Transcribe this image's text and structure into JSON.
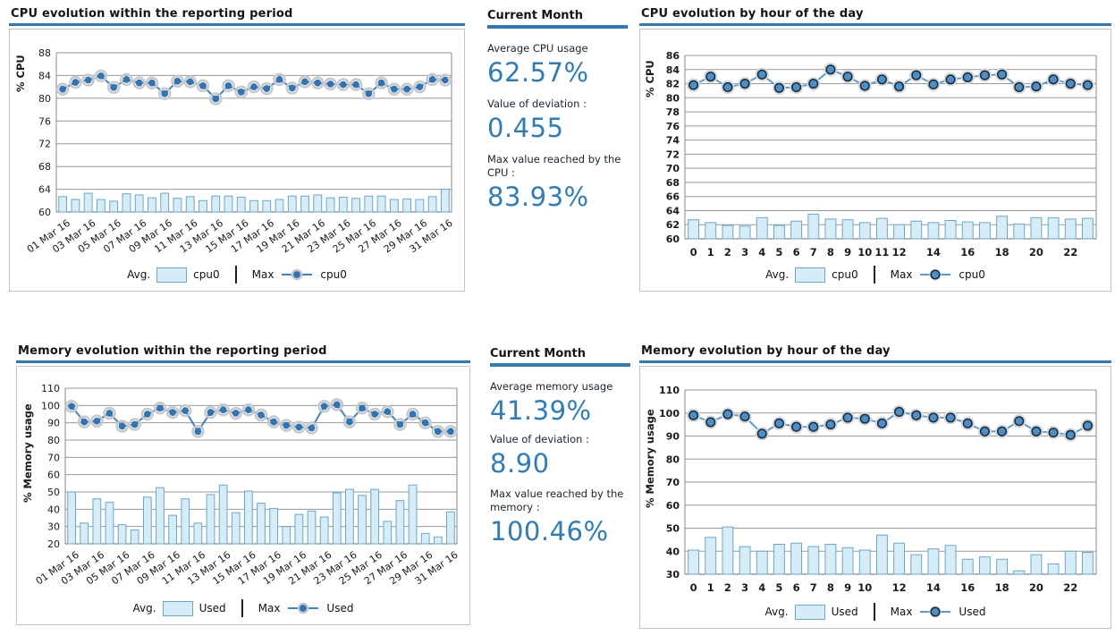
{
  "colors": {
    "accent": "#3079b8",
    "stat_value_blue": "#2e7cba",
    "bar_fill": "#d6ecf7",
    "bar_border": "#68a8cb",
    "line_left": "#3d82c4",
    "line_right": "#5b9bd5",
    "marker_fill_left": "#2e75b6",
    "marker_fill_right": "#4a8fc7"
  },
  "stats_cpu": {
    "heading": "Current Month",
    "items": [
      {
        "label": "Average CPU usage",
        "value": "62.57%"
      },
      {
        "label": "Value of deviation :",
        "value": "0.455"
      },
      {
        "label": "Max value reached by the CPU :",
        "value": "83.93%"
      }
    ]
  },
  "stats_memory": {
    "heading": "Current Month",
    "items": [
      {
        "label": "Average memory usage",
        "value": "41.39%"
      },
      {
        "label": "Value of deviation :",
        "value": "8.90"
      },
      {
        "label": "Max value reached by the memory :",
        "value": "100.46%"
      }
    ]
  },
  "chart_data": [
    {
      "id": "cpu-period",
      "type": "bar+line",
      "title": "CPU evolution within the reporting period",
      "ylabel": "% CPU",
      "ylim": [
        60,
        88
      ],
      "ytick_step": 4,
      "grid": true,
      "legend_position": "bottom",
      "categories": [
        "01 Mar 16",
        "02 Mar 16",
        "03 Mar 16",
        "04 Mar 16",
        "05 Mar 16",
        "06 Mar 16",
        "07 Mar 16",
        "08 Mar 16",
        "09 Mar 16",
        "10 Mar 16",
        "11 Mar 16",
        "12 Mar 16",
        "13 Mar 16",
        "14 Mar 16",
        "15 Mar 16",
        "16 Mar 16",
        "17 Mar 16",
        "18 Mar 16",
        "19 Mar 16",
        "20 Mar 16",
        "21 Mar 16",
        "22 Mar 16",
        "23 Mar 16",
        "24 Mar 16",
        "25 Mar 16",
        "26 Mar 16",
        "27 Mar 16",
        "28 Mar 16",
        "29 Mar 16",
        "30 Mar 16",
        "31 Mar 16"
      ],
      "xtick_indices": [
        0,
        2,
        4,
        6,
        8,
        10,
        12,
        14,
        16,
        18,
        20,
        22,
        24,
        26,
        28,
        30
      ],
      "series": [
        {
          "name": "cpu0",
          "stat": "Avg.",
          "type": "bar",
          "values": [
            62.7,
            62.2,
            63.3,
            62.2,
            61.9,
            63.2,
            63.0,
            62.5,
            63.3,
            62.4,
            62.7,
            62.0,
            62.8,
            62.8,
            62.6,
            62.0,
            62.0,
            62.2,
            62.8,
            62.8,
            63.0,
            62.5,
            62.6,
            62.4,
            62.8,
            62.8,
            62.2,
            62.3,
            62.2,
            62.7,
            64.0
          ]
        },
        {
          "name": "cpu0",
          "stat": "Max",
          "type": "line",
          "values": [
            81.6,
            82.8,
            83.2,
            83.93,
            81.9,
            83.3,
            82.7,
            82.7,
            80.8,
            83.0,
            82.9,
            82.2,
            79.9,
            82.2,
            81.1,
            82.0,
            81.7,
            83.3,
            81.8,
            82.9,
            82.7,
            82.5,
            82.4,
            82.4,
            80.8,
            82.7,
            81.6,
            81.6,
            82.0,
            83.3,
            83.2
          ]
        }
      ],
      "legend": {
        "avg_label": "Avg.",
        "avg_series": "cpu0",
        "max_label": "Max",
        "max_series": "cpu0"
      }
    },
    {
      "id": "cpu-hour",
      "type": "bar+line",
      "title": "CPU evolution by hour of the day",
      "ylabel": "% CPU",
      "ylim": [
        60,
        86
      ],
      "ytick_step": 2,
      "grid": true,
      "legend_position": "bottom",
      "categories": [
        "0",
        "1",
        "2",
        "3",
        "4",
        "5",
        "6",
        "7",
        "8",
        "9",
        "10",
        "11",
        "12",
        "13",
        "14",
        "15",
        "16",
        "17",
        "18",
        "19",
        "20",
        "21",
        "22",
        "23"
      ],
      "xtick_indices": [
        0,
        1,
        2,
        3,
        4,
        5,
        6,
        7,
        8,
        9,
        10,
        11,
        12,
        14,
        16,
        18,
        20,
        22
      ],
      "series": [
        {
          "name": "cpu0",
          "stat": "Avg.",
          "type": "bar",
          "values": [
            62.7,
            62.3,
            61.9,
            61.8,
            63.0,
            61.9,
            62.5,
            63.5,
            62.8,
            62.7,
            62.3,
            62.9,
            62.0,
            62.5,
            62.3,
            62.6,
            62.4,
            62.3,
            63.2,
            62.1,
            63.0,
            63.0,
            62.8,
            62.9
          ]
        },
        {
          "name": "cpu0",
          "stat": "Max",
          "type": "line",
          "values": [
            81.8,
            83.0,
            81.5,
            82.0,
            83.3,
            81.4,
            81.5,
            82.0,
            84.0,
            83.0,
            81.7,
            82.6,
            81.6,
            83.2,
            81.9,
            82.6,
            82.9,
            83.2,
            83.3,
            81.5,
            81.6,
            82.6,
            82.0,
            81.8
          ]
        }
      ],
      "legend": {
        "avg_label": "Avg.",
        "avg_series": "cpu0",
        "max_label": "Max",
        "max_series": "cpu0"
      }
    },
    {
      "id": "memory-period",
      "type": "bar+line",
      "title": "Memory evolution within the reporting period",
      "ylabel": "% Memory usage",
      "ylim": [
        20,
        110
      ],
      "ytick_step": 10,
      "grid": true,
      "legend_position": "bottom",
      "categories": [
        "01 Mar 16",
        "02 Mar 16",
        "03 Mar 16",
        "04 Mar 16",
        "05 Mar 16",
        "06 Mar 16",
        "07 Mar 16",
        "08 Mar 16",
        "09 Mar 16",
        "10 Mar 16",
        "11 Mar 16",
        "12 Mar 16",
        "13 Mar 16",
        "14 Mar 16",
        "15 Mar 16",
        "16 Mar 16",
        "17 Mar 16",
        "18 Mar 16",
        "19 Mar 16",
        "20 Mar 16",
        "21 Mar 16",
        "22 Mar 16",
        "23 Mar 16",
        "24 Mar 16",
        "25 Mar 16",
        "26 Mar 16",
        "27 Mar 16",
        "28 Mar 16",
        "29 Mar 16",
        "30 Mar 16",
        "31 Mar 16"
      ],
      "xtick_indices": [
        0,
        2,
        4,
        6,
        8,
        10,
        12,
        14,
        16,
        18,
        20,
        22,
        24,
        26,
        28,
        30
      ],
      "series": [
        {
          "name": "Used",
          "stat": "Avg.",
          "type": "bar",
          "values": [
            50,
            32,
            46,
            44,
            31,
            28,
            47,
            52.5,
            36.5,
            46,
            32,
            48.5,
            54,
            38,
            50.5,
            43.5,
            40.5,
            30,
            37,
            39,
            35.5,
            49.5,
            51.5,
            48,
            51.5,
            33,
            45,
            54,
            26,
            24,
            38.5
          ]
        },
        {
          "name": "Used",
          "stat": "Max",
          "type": "line",
          "values": [
            99.5,
            90.5,
            91,
            95.5,
            88,
            89,
            95,
            98.5,
            96,
            97,
            85,
            96,
            97.5,
            95.5,
            97.5,
            94.5,
            90.5,
            88.5,
            87.5,
            87,
            99.5,
            100.46,
            90.5,
            98.5,
            95,
            96.5,
            89,
            95,
            90,
            85,
            85
          ]
        }
      ],
      "legend": {
        "avg_label": "Avg.",
        "avg_series": "Used",
        "max_label": "Max",
        "max_series": "Used"
      }
    },
    {
      "id": "memory-hour",
      "type": "bar+line",
      "title": "Memory evolution by hour of the day",
      "ylabel": "% Memory usage",
      "ylim": [
        30,
        110
      ],
      "ytick_step": 10,
      "grid": true,
      "legend_position": "bottom",
      "categories": [
        "0",
        "1",
        "2",
        "3",
        "4",
        "5",
        "6",
        "7",
        "8",
        "9",
        "10",
        "11",
        "12",
        "13",
        "14",
        "15",
        "16",
        "17",
        "18",
        "19",
        "20",
        "21",
        "22",
        "23"
      ],
      "xtick_indices": [
        0,
        1,
        2,
        3,
        4,
        5,
        6,
        7,
        8,
        9,
        10,
        12,
        14,
        16,
        18,
        20,
        22
      ],
      "series": [
        {
          "name": "Used",
          "stat": "Avg.",
          "type": "bar",
          "values": [
            40.5,
            46,
            50.5,
            42,
            40,
            43,
            43.5,
            42,
            43,
            41.5,
            40.5,
            47,
            43.5,
            38.5,
            41,
            42.5,
            36.5,
            37.5,
            36.5,
            31.5,
            38.5,
            34.5,
            40,
            39.5
          ]
        },
        {
          "name": "Used",
          "stat": "Max",
          "type": "line",
          "values": [
            99,
            96,
            99.5,
            98.5,
            91,
            95.5,
            94,
            94,
            95,
            98,
            97.5,
            95.5,
            100.5,
            99,
            98,
            98,
            95.5,
            92,
            92,
            96.5,
            92,
            91.5,
            90.5,
            94.5
          ]
        }
      ],
      "legend": {
        "avg_label": "Avg.",
        "avg_series": "Used",
        "max_label": "Max",
        "max_series": "Used"
      }
    }
  ]
}
